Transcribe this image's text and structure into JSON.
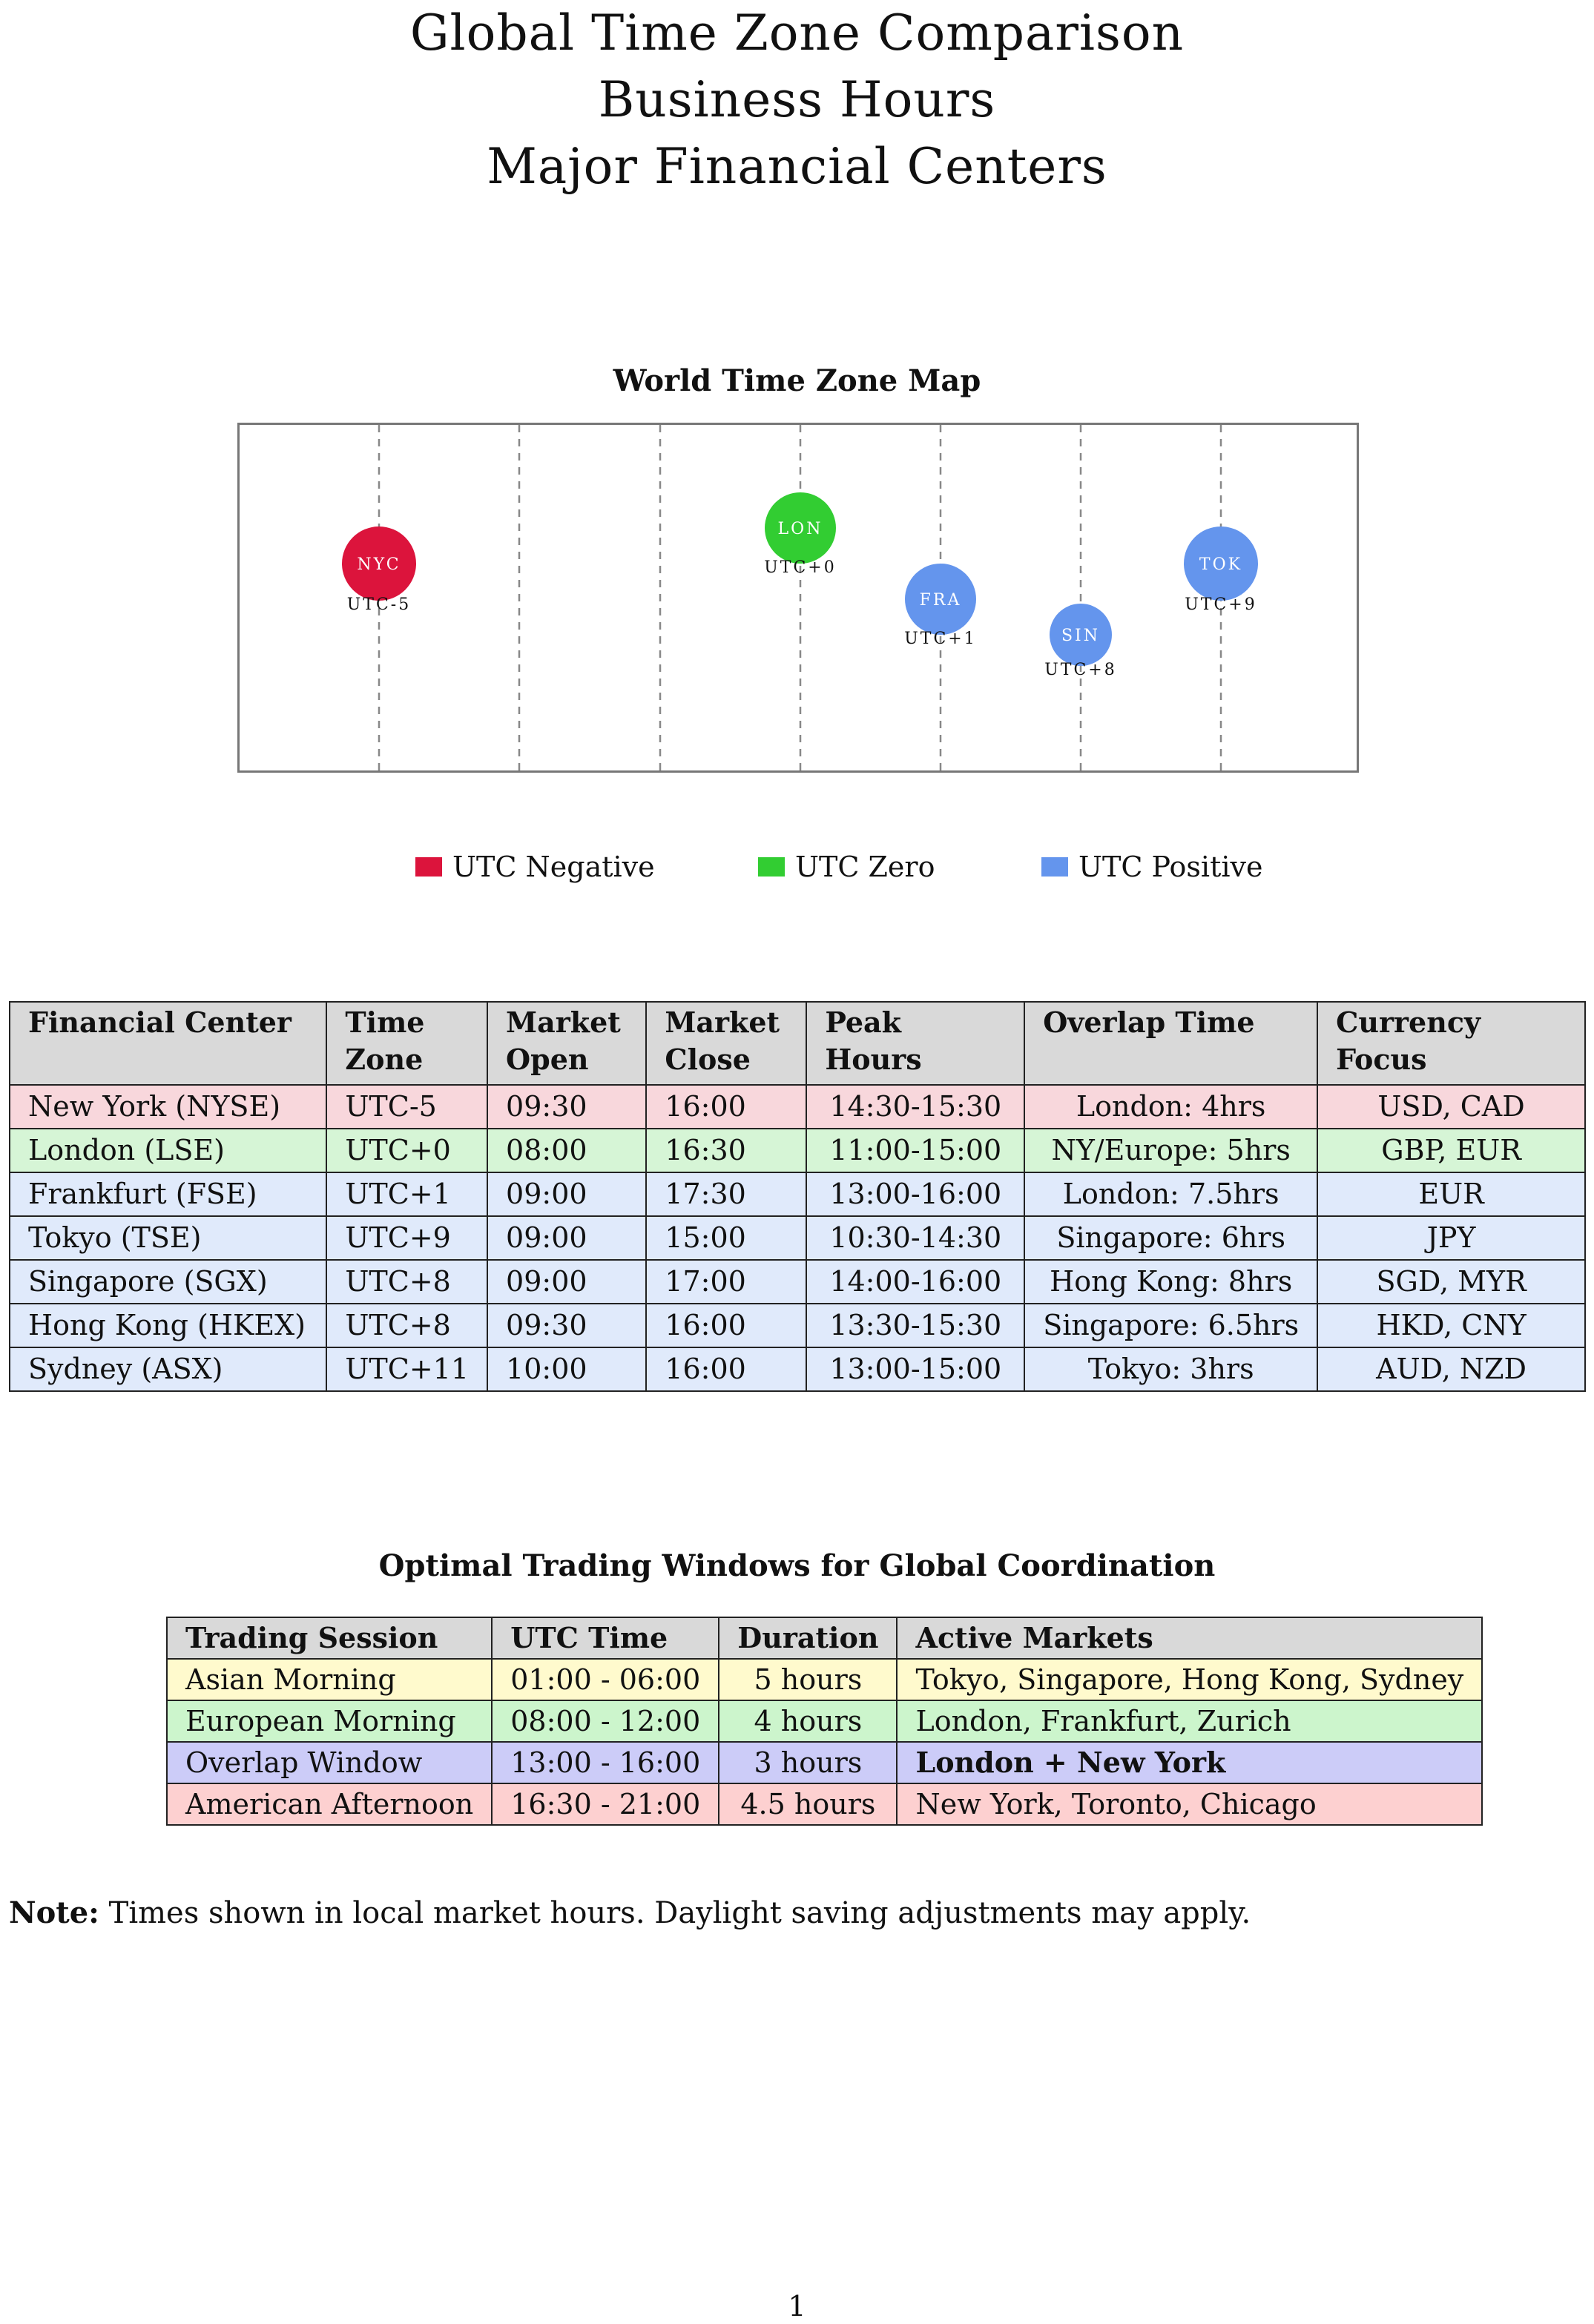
{
  "title": {
    "line1": "Global Time Zone Comparison",
    "line2": "Business Hours",
    "line3": "Major Financial Centers"
  },
  "map": {
    "title": "World Time Zone Map",
    "cities": [
      {
        "code": "NYC",
        "utc": "UTC-5",
        "category": "negative"
      },
      {
        "code": "LON",
        "utc": "UTC+0",
        "category": "zero"
      },
      {
        "code": "FRA",
        "utc": "UTC+1",
        "category": "positive"
      },
      {
        "code": "SIN",
        "utc": "UTC+8",
        "category": "positive"
      },
      {
        "code": "TOK",
        "utc": "UTC+9",
        "category": "positive"
      }
    ],
    "colors": {
      "negative": "#dc143c",
      "zero": "#32cd32",
      "positive": "#6495ed"
    }
  },
  "legend": {
    "negative": "UTC Negative",
    "zero": "UTC Zero",
    "positive": "UTC Positive"
  },
  "markets": {
    "headers": [
      "Financial Center",
      "Time Zone",
      "Market Open",
      "Market Close",
      "Peak Hours",
      "Overlap Time",
      "Currency Focus"
    ],
    "rows": [
      {
        "center": "New York (NYSE)",
        "tz": "UTC-5",
        "open": "09:30",
        "close": "16:00",
        "peak": "14:30-15:30",
        "overlap": "London: 4hrs",
        "currency": "USD, CAD",
        "bg": "#f8d7dc"
      },
      {
        "center": "London (LSE)",
        "tz": "UTC+0",
        "open": "08:00",
        "close": "16:30",
        "peak": "11:00-15:00",
        "overlap": "NY/Europe: 5hrs",
        "currency": "GBP, EUR",
        "bg": "#d6f5d6"
      },
      {
        "center": "Frankfurt (FSE)",
        "tz": "UTC+1",
        "open": "09:00",
        "close": "17:30",
        "peak": "13:00-16:00",
        "overlap": "London: 7.5hrs",
        "currency": "EUR",
        "bg": "#e0eafb"
      },
      {
        "center": "Tokyo (TSE)",
        "tz": "UTC+9",
        "open": "09:00",
        "close": "15:00",
        "peak": "10:30-14:30",
        "overlap": "Singapore: 6hrs",
        "currency": "JPY",
        "bg": "#e0eafb"
      },
      {
        "center": "Singapore (SGX)",
        "tz": "UTC+8",
        "open": "09:00",
        "close": "17:00",
        "peak": "14:00-16:00",
        "overlap": "Hong Kong: 8hrs",
        "currency": "SGD, MYR",
        "bg": "#e0eafb"
      },
      {
        "center": "Hong Kong (HKEX)",
        "tz": "UTC+8",
        "open": "09:30",
        "close": "16:00",
        "peak": "13:30-15:30",
        "overlap": "Singapore: 6.5hrs",
        "currency": "HKD, CNY",
        "bg": "#e0eafb"
      },
      {
        "center": "Sydney (ASX)",
        "tz": "UTC+11",
        "open": "10:00",
        "close": "16:00",
        "peak": "13:00-15:00",
        "overlap": "Tokyo: 3hrs",
        "currency": "AUD, NZD",
        "bg": "#e0eafb"
      }
    ]
  },
  "windows": {
    "title": "Optimal Trading Windows for Global Coordination",
    "headers": [
      "Trading Session",
      "UTC Time",
      "Duration",
      "Active Markets"
    ],
    "rows": [
      {
        "session": "Asian Morning",
        "time": "01:00 - 06:00",
        "duration": "5 hours",
        "markets": "Tokyo, Singapore, Hong Kong, Sydney",
        "bg": "#fffacd",
        "bold": false
      },
      {
        "session": "European Morning",
        "time": "08:00 - 12:00",
        "duration": "4 hours",
        "markets": "London, Frankfurt, Zurich",
        "bg": "#ccf5cc",
        "bold": false
      },
      {
        "session": "Overlap Window",
        "time": "13:00 - 16:00",
        "duration": "3 hours",
        "markets": "London + New York",
        "bg": "#ccccf8",
        "bold": true
      },
      {
        "session": "American Afternoon",
        "time": "16:30 - 21:00",
        "duration": "4.5 hours",
        "markets": "New York, Toronto, Chicago",
        "bg": "#fdd0d0",
        "bold": false
      }
    ]
  },
  "note": {
    "label": "Note:",
    "text": "Times shown in local market hours. Daylight saving adjustments may apply."
  },
  "page_number": "1"
}
